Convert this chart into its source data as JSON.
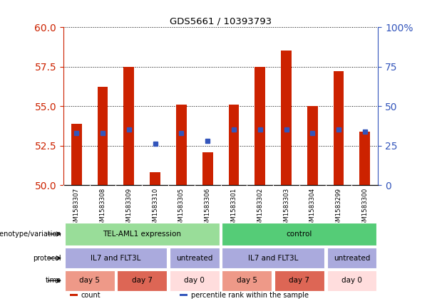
{
  "title": "GDS5661 / 10393793",
  "samples": [
    "GSM1583307",
    "GSM1583308",
    "GSM1583309",
    "GSM1583310",
    "GSM1583305",
    "GSM1583306",
    "GSM1583301",
    "GSM1583302",
    "GSM1583303",
    "GSM1583304",
    "GSM1583299",
    "GSM1583300"
  ],
  "bar_bottoms": [
    50,
    50,
    50,
    50,
    50,
    50,
    50,
    50,
    50,
    50,
    50,
    50
  ],
  "bar_tops": [
    53.9,
    56.2,
    57.5,
    50.8,
    55.1,
    52.1,
    55.1,
    57.5,
    58.5,
    55.0,
    57.2,
    53.4
  ],
  "percentile_values": [
    53.3,
    53.3,
    53.5,
    52.6,
    53.3,
    52.8,
    53.5,
    53.5,
    53.5,
    53.3,
    53.5,
    53.4
  ],
  "ylim_left": [
    50,
    60
  ],
  "ylim_right": [
    0,
    100
  ],
  "yticks_left": [
    50,
    52.5,
    55,
    57.5,
    60
  ],
  "yticks_right": [
    0,
    25,
    50,
    75,
    100
  ],
  "bar_color": "#cc2200",
  "percentile_color": "#3355bb",
  "left_tick_color": "#cc2200",
  "right_tick_color": "#3355bb",
  "sample_bg": "#cccccc",
  "genotype_row": {
    "label": "genotype/variation",
    "groups": [
      {
        "text": "TEL-AML1 expression",
        "span": [
          0,
          6
        ],
        "color": "#99dd99"
      },
      {
        "text": "control",
        "span": [
          6,
          12
        ],
        "color": "#55cc77"
      }
    ]
  },
  "protocol_row": {
    "label": "protocol",
    "groups": [
      {
        "text": "IL7 and FLT3L",
        "span": [
          0,
          4
        ],
        "color": "#aaaadd"
      },
      {
        "text": "untreated",
        "span": [
          4,
          6
        ],
        "color": "#aaaadd"
      },
      {
        "text": "IL7 and FLT3L",
        "span": [
          6,
          10
        ],
        "color": "#aaaadd"
      },
      {
        "text": "untreated",
        "span": [
          10,
          12
        ],
        "color": "#aaaadd"
      }
    ]
  },
  "time_row": {
    "label": "time",
    "groups": [
      {
        "text": "day 5",
        "span": [
          0,
          2
        ],
        "color": "#ee9988"
      },
      {
        "text": "day 7",
        "span": [
          2,
          4
        ],
        "color": "#dd6655"
      },
      {
        "text": "day 0",
        "span": [
          4,
          6
        ],
        "color": "#ffdddd"
      },
      {
        "text": "day 5",
        "span": [
          6,
          8
        ],
        "color": "#ee9988"
      },
      {
        "text": "day 7",
        "span": [
          8,
          10
        ],
        "color": "#dd6655"
      },
      {
        "text": "day 0",
        "span": [
          10,
          12
        ],
        "color": "#ffdddd"
      }
    ]
  },
  "legend_items": [
    {
      "color": "#cc2200",
      "label": "count"
    },
    {
      "color": "#3355bb",
      "label": "percentile rank within the sample"
    }
  ]
}
